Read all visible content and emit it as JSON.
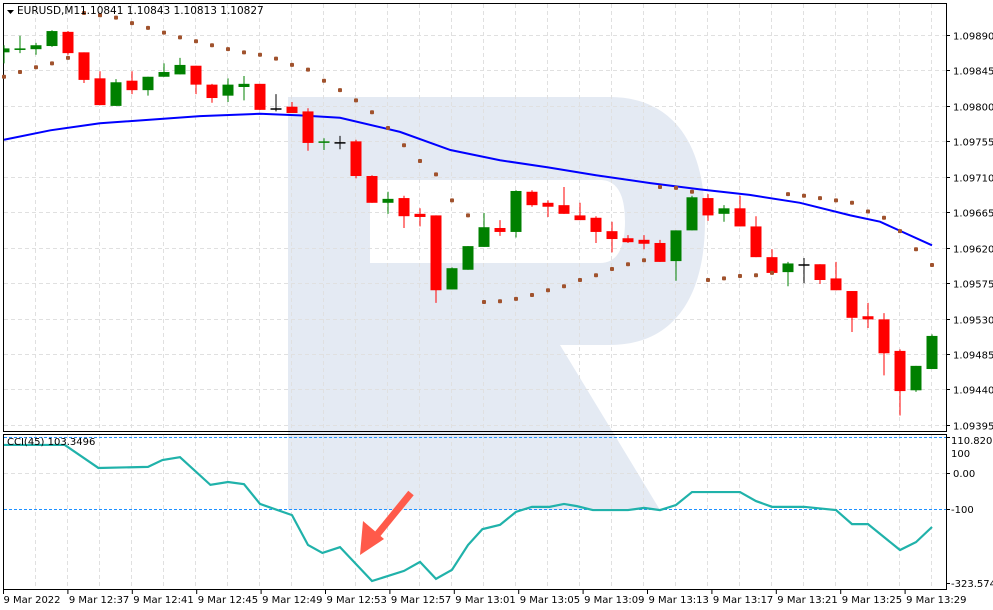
{
  "header": {
    "symbol": "EURUSD,M1",
    "ohlc": "1.10841 1.10843 1.10813 1.10827",
    "dropdown_icon": "triangle-down-icon"
  },
  "indicator": {
    "label": "CCI(45) 103.3496",
    "level_upper": "100",
    "axis_max": "110.8202",
    "axis_zero": "0.00",
    "level_lower": "-100",
    "axis_min": "-323.5745"
  },
  "colors": {
    "bull": "#008000",
    "bear": "#ff0000",
    "doji": "#000000",
    "ma": "#0000ff",
    "sar": "#a0522d",
    "cci": "#20b2aa",
    "levels": "#1e90ff",
    "arrow": "#ff5a4a",
    "watermark": "#e4eaf3"
  },
  "chart_data": [
    {
      "type": "candlestick",
      "title": "EURUSD,M1",
      "ylim": [
        1.09395,
        1.09935
      ],
      "price_ticks": [
        "1.09890",
        "1.09845",
        "1.09800",
        "1.09755",
        "1.09710",
        "1.09665",
        "1.09620",
        "1.09575",
        "1.09530",
        "1.09485",
        "1.09440",
        "1.09395"
      ],
      "time_labels": [
        "9 Mar 2022",
        "9 Mar 12:37",
        "9 Mar 12:41",
        "9 Mar 12:45",
        "9 Mar 12:49",
        "9 Mar 12:53",
        "9 Mar 12:57",
        "9 Mar 13:01",
        "9 Mar 13:05",
        "9 Mar 13:09",
        "9 Mar 13:13",
        "9 Mar 13:17",
        "9 Mar 13:21",
        "9 Mar 13:25",
        "9 Mar 13:29"
      ],
      "candles_ohlc": [
        [
          1.09868,
          1.09877,
          1.09854,
          1.09873
        ],
        [
          1.09871,
          1.09889,
          1.09867,
          1.09873
        ],
        [
          1.09872,
          1.0988,
          1.09865,
          1.09877
        ],
        [
          1.09876,
          1.09896,
          1.09875,
          1.09895
        ],
        [
          1.09894,
          1.09895,
          1.09865,
          1.09867
        ],
        [
          1.09868,
          1.09868,
          1.09829,
          1.09833
        ],
        [
          1.09835,
          1.09844,
          1.09801,
          1.09801
        ],
        [
          1.098,
          1.09834,
          1.098,
          1.0983
        ],
        [
          1.09832,
          1.09844,
          1.09815,
          1.0982
        ],
        [
          1.0982,
          1.09837,
          1.09813,
          1.09837
        ],
        [
          1.09837,
          1.09854,
          1.09837,
          1.09843
        ],
        [
          1.0984,
          1.09861,
          1.0984,
          1.09852
        ],
        [
          1.09851,
          1.09851,
          1.09815,
          1.09827
        ],
        [
          1.09827,
          1.09828,
          1.09804,
          1.0981
        ],
        [
          1.09813,
          1.09835,
          1.09805,
          1.09827
        ],
        [
          1.09824,
          1.09838,
          1.09807,
          1.09828
        ],
        [
          1.09828,
          1.09828,
          1.09795,
          1.09795
        ],
        [
          1.09797,
          1.09815,
          1.09793,
          1.09797
        ],
        [
          1.09799,
          1.09805,
          1.09791,
          1.09791
        ],
        [
          1.09793,
          1.09797,
          1.09743,
          1.09753
        ],
        [
          1.09754,
          1.09759,
          1.09744,
          1.09755
        ],
        [
          1.09754,
          1.09762,
          1.09745,
          1.09754
        ],
        [
          1.09755,
          1.09757,
          1.09708,
          1.09711
        ],
        [
          1.09711,
          1.09712,
          1.09677,
          1.09677
        ],
        [
          1.09677,
          1.09691,
          1.09663,
          1.09682
        ],
        [
          1.09683,
          1.09686,
          1.09645,
          1.0966
        ],
        [
          1.09663,
          1.0967,
          1.09647,
          1.09659
        ],
        [
          1.09661,
          1.09661,
          1.0955,
          1.09566
        ],
        [
          1.09567,
          1.09595,
          1.09567,
          1.09594
        ],
        [
          1.09592,
          1.09622,
          1.09592,
          1.09622
        ],
        [
          1.09621,
          1.09664,
          1.09621,
          1.09646
        ],
        [
          1.09645,
          1.09655,
          1.09635,
          1.0964
        ],
        [
          1.0964,
          1.09693,
          1.09633,
          1.09692
        ],
        [
          1.09691,
          1.09693,
          1.09672,
          1.09674
        ],
        [
          1.09677,
          1.0968,
          1.09659,
          1.09672
        ],
        [
          1.09674,
          1.09697,
          1.09663,
          1.09663
        ],
        [
          1.09661,
          1.09677,
          1.09655,
          1.09655
        ],
        [
          1.09658,
          1.0966,
          1.09626,
          1.0964
        ],
        [
          1.09641,
          1.09653,
          1.09614,
          1.09631
        ],
        [
          1.09632,
          1.09636,
          1.09626,
          1.09627
        ],
        [
          1.0963,
          1.09636,
          1.09618,
          1.09625
        ],
        [
          1.09626,
          1.0963,
          1.09602,
          1.09602
        ],
        [
          1.09603,
          1.09642,
          1.09578,
          1.09642
        ],
        [
          1.09642,
          1.09686,
          1.09642,
          1.09684
        ],
        [
          1.09683,
          1.09688,
          1.09654,
          1.09661
        ],
        [
          1.09663,
          1.09674,
          1.09653,
          1.0967
        ],
        [
          1.0967,
          1.09686,
          1.09647,
          1.09647
        ],
        [
          1.09647,
          1.0966,
          1.09608,
          1.09608
        ],
        [
          1.09608,
          1.09618,
          1.09588,
          1.09588
        ],
        [
          1.09589,
          1.09602,
          1.09571,
          1.096
        ],
        [
          1.09599,
          1.09607,
          1.09575,
          1.09599
        ],
        [
          1.09599,
          1.09599,
          1.09574,
          1.09579
        ],
        [
          1.09581,
          1.09602,
          1.09566,
          1.09566
        ],
        [
          1.09565,
          1.09565,
          1.09513,
          1.09531
        ],
        [
          1.09533,
          1.0955,
          1.09518,
          1.09529
        ],
        [
          1.09529,
          1.09537,
          1.09458,
          1.09486
        ],
        [
          1.09489,
          1.09491,
          1.09407,
          1.09438
        ],
        [
          1.09439,
          1.0947,
          1.09437,
          1.0947
        ],
        [
          1.09466,
          1.0951,
          1.09466,
          1.09508
        ]
      ],
      "moving_average": [
        [
          0,
          1.09757
        ],
        [
          2.9,
          1.09769
        ],
        [
          6,
          1.09778
        ],
        [
          12.25,
          1.09787
        ],
        [
          16,
          1.0979
        ],
        [
          18.5,
          1.09788
        ],
        [
          21,
          1.09785
        ],
        [
          24.75,
          1.09767
        ],
        [
          27.9,
          1.09744
        ],
        [
          31,
          1.09731
        ],
        [
          34,
          1.09722
        ],
        [
          37,
          1.09712
        ],
        [
          40.4,
          1.09702
        ],
        [
          43.5,
          1.09694
        ],
        [
          46.6,
          1.09687
        ],
        [
          49.75,
          1.09677
        ],
        [
          52.9,
          1.09661
        ],
        [
          54.75,
          1.09653
        ],
        [
          58,
          1.09623
        ]
      ],
      "parabolic_sar": [
        1.09837,
        1.09843,
        1.09849,
        1.09854,
        1.09861,
        1.09918,
        1.09915,
        1.09912,
        1.09905,
        1.09899,
        1.09893,
        1.09887,
        1.09882,
        1.09877,
        1.09872,
        1.09868,
        1.09865,
        1.0986,
        1.09852,
        1.09846,
        1.09832,
        1.0982,
        1.09807,
        1.09792,
        1.09772,
        1.0975,
        1.0973,
        1.09713,
        1.0968,
        1.09661,
        1.09551,
        1.09552,
        1.09555,
        1.0956,
        1.09566,
        1.09571,
        1.09579,
        1.09585,
        1.09593,
        1.09599,
        1.09604,
        1.09697,
        1.09696,
        1.09691,
        1.09579,
        1.09581,
        1.09584,
        1.09585,
        1.09588,
        1.09688,
        1.09686,
        1.09683,
        1.0968,
        1.09677,
        1.09666,
        1.09658,
        1.09641,
        1.09618,
        1.09598
      ]
    },
    {
      "type": "line",
      "title": "CCI(45) 103.3496",
      "ylim": [
        -323.5745,
        110.8202
      ],
      "levels": [
        100,
        -100
      ],
      "series": [
        {
          "name": "CCI(45)",
          "points": [
            [
              0,
              78
            ],
            [
              3.8,
              78
            ],
            [
              5.9,
              14
            ],
            [
              9,
              17
            ],
            [
              9.9,
              36
            ],
            [
              11,
              44
            ],
            [
              12.9,
              -33
            ],
            [
              14,
              -25
            ],
            [
              15,
              -31
            ],
            [
              16,
              -86
            ],
            [
              18,
              -117
            ],
            [
              19,
              -200
            ],
            [
              19.9,
              -222
            ],
            [
              21,
              -206
            ],
            [
              23,
              -300
            ],
            [
              25,
              -272
            ],
            [
              26,
              -247
            ],
            [
              27,
              -294
            ],
            [
              28,
              -269
            ],
            [
              29,
              -200
            ],
            [
              29.9,
              -156
            ],
            [
              31,
              -144
            ],
            [
              32,
              -108
            ],
            [
              33,
              -94
            ],
            [
              34.1,
              -94
            ],
            [
              35,
              -86
            ],
            [
              35.8,
              -92
            ],
            [
              36.8,
              -103
            ],
            [
              39,
              -103
            ],
            [
              40,
              -97
            ],
            [
              41,
              -103
            ],
            [
              42,
              -89
            ],
            [
              43,
              -53
            ],
            [
              46,
              -53
            ],
            [
              47,
              -78
            ],
            [
              48,
              -94
            ],
            [
              50,
              -94
            ],
            [
              52,
              -103
            ],
            [
              53,
              -142
            ],
            [
              54,
              -142
            ],
            [
              56,
              -214
            ],
            [
              57,
              -192
            ],
            [
              58,
              -150
            ]
          ]
        }
      ]
    }
  ]
}
